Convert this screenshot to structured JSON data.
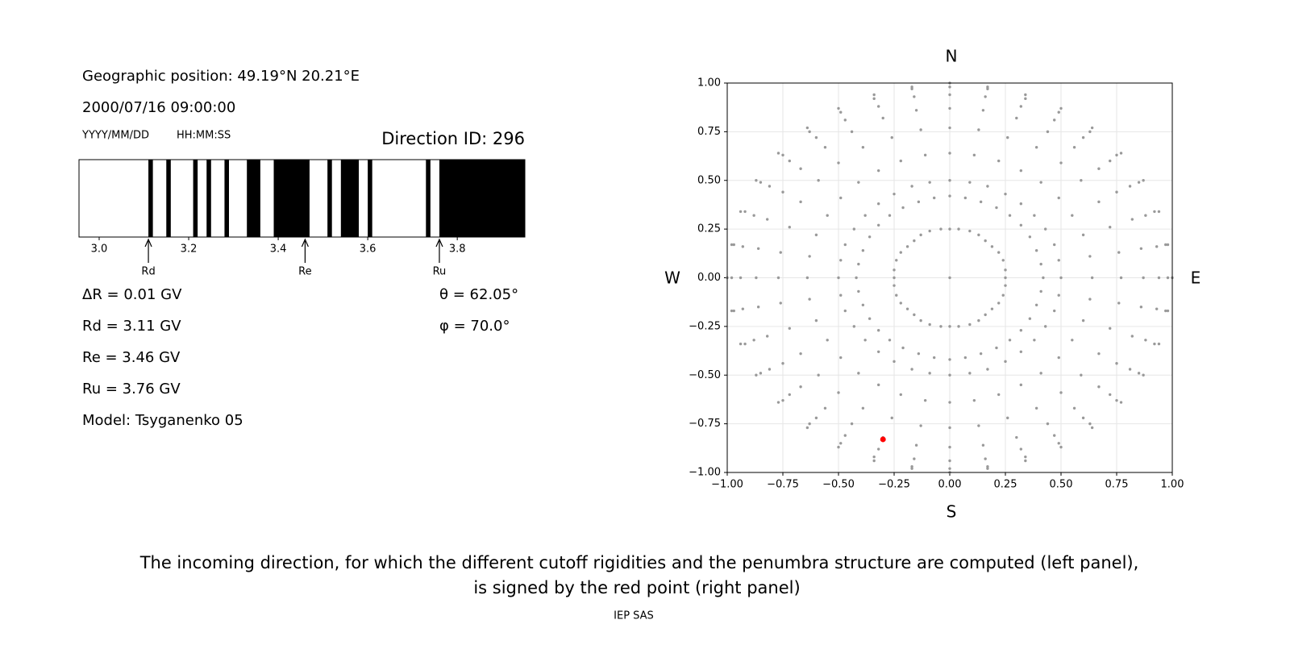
{
  "chart_data": [
    {
      "type": "penumbra",
      "title": "Direction ID: 296",
      "position": "Geographic position: 49.19°N 20.21°E",
      "datetime": "2000/07/16 09:00:00",
      "date_format": "YYYY/MM/DD",
      "time_format": "HH:MM:SS",
      "step": "ΔR = 0.01 GV",
      "model": "Model: Tsyganenko 05",
      "theta": "θ = 62.05°",
      "phi": "φ = 70.0°",
      "color": "#000000",
      "xlim": [
        2.955,
        3.951
      ],
      "xticks": [
        {
          "value": 3,
          "label": "3.0"
        },
        3.2,
        3.4,
        3.6,
        3.8
      ],
      "segments": [
        [
          3.11,
          3.12
        ],
        [
          3.15,
          3.16
        ],
        [
          3.21,
          3.22
        ],
        [
          3.24,
          3.25
        ],
        [
          3.28,
          3.29
        ],
        [
          3.33,
          3.36
        ],
        [
          3.39,
          3.47
        ],
        [
          3.51,
          3.52
        ],
        [
          3.54,
          3.58
        ],
        [
          3.6,
          3.61
        ],
        [
          3.73,
          3.74
        ],
        [
          3.76,
          3.951
        ]
      ],
      "markers": [
        {
          "name": "Rd",
          "value": 3.11,
          "label": "Rd = 3.11 GV"
        },
        {
          "name": "Re",
          "value": 3.46,
          "label": "Re = 3.46 GV"
        },
        {
          "name": "Ru",
          "value": 3.76,
          "label": "Ru = 3.76 GV"
        }
      ]
    },
    {
      "type": "scatter",
      "north": "N",
      "south": "S",
      "west": "W",
      "east": "E",
      "xlim": [
        -1,
        1
      ],
      "ylim": [
        -1,
        1
      ],
      "grid": true,
      "color": "#999999",
      "xticks": [
        {
          "value": -1,
          "label": "−1.00"
        },
        {
          "value": -0.75,
          "label": "−0.75"
        },
        {
          "value": -0.5,
          "label": "−0.50"
        },
        {
          "value": -0.25,
          "label": "−0.25"
        },
        {
          "value": 0,
          "label": "0.00"
        },
        {
          "value": 0.25,
          "label": "0.25"
        },
        {
          "value": 0.5,
          "label": "0.50"
        },
        {
          "value": 0.75,
          "label": "0.75"
        },
        {
          "value": 1,
          "label": "1.00"
        }
      ],
      "yticks": [
        {
          "value": -1,
          "label": "−1.00"
        },
        {
          "value": -0.75,
          "label": "−0.75"
        },
        {
          "value": -0.5,
          "label": "−0.50"
        },
        {
          "value": -0.25,
          "label": "−0.25"
        },
        {
          "value": 0,
          "label": "0.00"
        },
        {
          "value": 0.25,
          "label": "0.25"
        },
        {
          "value": 0.5,
          "label": "0.50"
        },
        {
          "value": 0.75,
          "label": "0.75"
        },
        {
          "value": 1,
          "label": "1.00"
        }
      ],
      "x": [
        0,
        0,
        0,
        0,
        0,
        0,
        0,
        0,
        0,
        0,
        0.04,
        0.07,
        0.09,
        0.11,
        0.13,
        0.15,
        0.16,
        0.17,
        0.17,
        0.09,
        0.14,
        0.17,
        0.22,
        0.26,
        0.3,
        0.32,
        0.34,
        0.34,
        0.13,
        0.21,
        0.25,
        0.32,
        0.39,
        0.44,
        0.47,
        0.49,
        0.5,
        0.16,
        0.27,
        0.32,
        0.41,
        0.5,
        0.56,
        0.6,
        0.63,
        0.64,
        0.19,
        0.32,
        0.38,
        0.49,
        0.59,
        0.67,
        0.72,
        0.75,
        0.77,
        0.22,
        0.36,
        0.43,
        0.55,
        0.67,
        0.75,
        0.81,
        0.85,
        0.87,
        0.24,
        0.39,
        0.47,
        0.6,
        0.72,
        0.82,
        0.88,
        0.92,
        0.94,
        0.25,
        0.41,
        0.49,
        0.63,
        0.76,
        0.86,
        0.93,
        0.97,
        0.98,
        0.25,
        0.42,
        0.5,
        0.64,
        0.77,
        0.87,
        0.94,
        0.98,
        1,
        0.25,
        0.41,
        0.49,
        0.63,
        0.76,
        0.86,
        0.93,
        0.97,
        0.98,
        0.24,
        0.39,
        0.47,
        0.6,
        0.72,
        0.82,
        0.88,
        0.92,
        0.94,
        0.22,
        0.36,
        0.43,
        0.55,
        0.67,
        0.75,
        0.81,
        0.85,
        0.87,
        0.19,
        0.32,
        0.38,
        0.49,
        0.59,
        0.67,
        0.72,
        0.75,
        0.77,
        0.16,
        0.27,
        0.32,
        0.41,
        0.5,
        0.56,
        0.6,
        0.63,
        0.64,
        0.13,
        0.21,
        0.25,
        0.32,
        0.39,
        0.44,
        0.47,
        0.49,
        0.5,
        0.09,
        0.14,
        0.17,
        0.22,
        0.26,
        0.3,
        0.32,
        0.34,
        0.34,
        0.04,
        0.07,
        0.09,
        0.11,
        0.13,
        0.15,
        0.16,
        0.17,
        0.17,
        0,
        0,
        0,
        0,
        0,
        0,
        0,
        0,
        0,
        -0.04,
        -0.07,
        -0.09,
        -0.11,
        -0.13,
        -0.15,
        -0.16,
        -0.17,
        -0.17,
        -0.09,
        -0.14,
        -0.17,
        -0.22,
        -0.26,
        -0.3,
        -0.32,
        -0.34,
        -0.34,
        -0.13,
        -0.21,
        -0.25,
        -0.32,
        -0.39,
        -0.44,
        -0.47,
        -0.49,
        -0.5,
        -0.16,
        -0.27,
        -0.32,
        -0.41,
        -0.5,
        -0.56,
        -0.6,
        -0.63,
        -0.64,
        -0.19,
        -0.32,
        -0.38,
        -0.49,
        -0.59,
        -0.67,
        -0.72,
        -0.75,
        -0.77,
        -0.22,
        -0.36,
        -0.43,
        -0.55,
        -0.67,
        -0.75,
        -0.81,
        -0.85,
        -0.87,
        -0.24,
        -0.39,
        -0.47,
        -0.6,
        -0.72,
        -0.82,
        -0.88,
        -0.92,
        -0.94,
        -0.25,
        -0.41,
        -0.49,
        -0.63,
        -0.76,
        -0.86,
        -0.93,
        -0.97,
        -0.98,
        -0.25,
        -0.42,
        -0.5,
        -0.64,
        -0.77,
        -0.87,
        -0.94,
        -0.98,
        -1,
        -0.25,
        -0.41,
        -0.49,
        -0.63,
        -0.76,
        -0.86,
        -0.93,
        -0.97,
        -0.98,
        -0.24,
        -0.39,
        -0.47,
        -0.6,
        -0.72,
        -0.82,
        -0.88,
        -0.92,
        -0.94,
        -0.22,
        -0.36,
        -0.43,
        -0.55,
        -0.67,
        -0.75,
        -0.81,
        -0.85,
        -0.87,
        -0.19,
        -0.32,
        -0.38,
        -0.49,
        -0.59,
        -0.67,
        -0.72,
        -0.75,
        -0.77,
        -0.16,
        -0.27,
        -0.32,
        -0.41,
        -0.5,
        -0.56,
        -0.6,
        -0.63,
        -0.64,
        -0.13,
        -0.21,
        -0.25,
        -0.32,
        -0.39,
        -0.44,
        -0.47,
        -0.49,
        -0.5,
        -0.09,
        -0.14,
        -0.17,
        -0.22,
        -0.26,
        -0.3,
        -0.32,
        -0.34,
        -0.34,
        -0.04,
        -0.07,
        -0.09,
        -0.11,
        -0.13,
        -0.15,
        -0.16,
        -0.17,
        -0.17
      ],
      "y": [
        0,
        0.25,
        0.42,
        0.5,
        0.64,
        0.77,
        0.87,
        0.94,
        0.98,
        1,
        0.25,
        0.41,
        0.49,
        0.63,
        0.76,
        0.86,
        0.93,
        0.97,
        0.98,
        0.24,
        0.39,
        0.47,
        0.6,
        0.72,
        0.82,
        0.88,
        0.92,
        0.94,
        0.22,
        0.36,
        0.43,
        0.55,
        0.67,
        0.75,
        0.81,
        0.85,
        0.87,
        0.19,
        0.32,
        0.38,
        0.49,
        0.59,
        0.67,
        0.72,
        0.75,
        0.77,
        0.16,
        0.27,
        0.32,
        0.41,
        0.5,
        0.56,
        0.6,
        0.63,
        0.64,
        0.13,
        0.21,
        0.25,
        0.32,
        0.39,
        0.44,
        0.47,
        0.49,
        0.5,
        0.09,
        0.14,
        0.17,
        0.22,
        0.26,
        0.3,
        0.32,
        0.34,
        0.34,
        0.04,
        0.07,
        0.09,
        0.11,
        0.13,
        0.15,
        0.16,
        0.17,
        0.17,
        0,
        0,
        0,
        0,
        0,
        0,
        0,
        0,
        0,
        -0.04,
        -0.07,
        -0.09,
        -0.11,
        -0.13,
        -0.15,
        -0.16,
        -0.17,
        -0.17,
        -0.09,
        -0.14,
        -0.17,
        -0.22,
        -0.26,
        -0.3,
        -0.32,
        -0.34,
        -0.34,
        -0.13,
        -0.21,
        -0.25,
        -0.32,
        -0.39,
        -0.44,
        -0.47,
        -0.49,
        -0.5,
        -0.16,
        -0.27,
        -0.32,
        -0.41,
        -0.5,
        -0.56,
        -0.6,
        -0.63,
        -0.64,
        -0.19,
        -0.32,
        -0.38,
        -0.49,
        -0.59,
        -0.67,
        -0.72,
        -0.75,
        -0.77,
        -0.22,
        -0.36,
        -0.43,
        -0.55,
        -0.67,
        -0.75,
        -0.81,
        -0.85,
        -0.87,
        -0.24,
        -0.39,
        -0.47,
        -0.6,
        -0.72,
        -0.82,
        -0.88,
        -0.92,
        -0.94,
        -0.25,
        -0.41,
        -0.49,
        -0.63,
        -0.76,
        -0.86,
        -0.93,
        -0.97,
        -0.98,
        -0.25,
        -0.42,
        -0.5,
        -0.64,
        -0.77,
        -0.87,
        -0.94,
        -0.98,
        -1,
        -0.25,
        -0.41,
        -0.49,
        -0.63,
        -0.76,
        -0.86,
        -0.93,
        -0.97,
        -0.98,
        -0.24,
        -0.39,
        -0.47,
        -0.6,
        -0.72,
        -0.82,
        -0.88,
        -0.92,
        -0.94,
        -0.22,
        -0.36,
        -0.43,
        -0.55,
        -0.67,
        -0.75,
        -0.81,
        -0.85,
        -0.87,
        -0.19,
        -0.32,
        -0.38,
        -0.49,
        -0.59,
        -0.67,
        -0.72,
        -0.75,
        -0.77,
        -0.16,
        -0.27,
        -0.32,
        -0.41,
        -0.5,
        -0.56,
        -0.6,
        -0.63,
        -0.64,
        -0.13,
        -0.21,
        -0.25,
        -0.32,
        -0.39,
        -0.44,
        -0.47,
        -0.49,
        -0.5,
        -0.09,
        -0.14,
        -0.17,
        -0.22,
        -0.26,
        -0.3,
        -0.32,
        -0.34,
        -0.34,
        -0.04,
        -0.07,
        -0.09,
        -0.11,
        -0.13,
        -0.15,
        -0.16,
        -0.17,
        -0.17,
        0,
        0,
        0,
        0,
        0,
        0,
        0,
        0,
        0,
        0.04,
        0.07,
        0.09,
        0.11,
        0.13,
        0.15,
        0.16,
        0.17,
        0.17,
        0.09,
        0.14,
        0.17,
        0.22,
        0.26,
        0.3,
        0.32,
        0.34,
        0.34,
        0.13,
        0.21,
        0.25,
        0.32,
        0.39,
        0.44,
        0.47,
        0.49,
        0.5,
        0.16,
        0.27,
        0.32,
        0.41,
        0.5,
        0.56,
        0.6,
        0.63,
        0.64,
        0.19,
        0.32,
        0.38,
        0.49,
        0.59,
        0.67,
        0.72,
        0.75,
        0.77,
        0.22,
        0.36,
        0.43,
        0.55,
        0.67,
        0.75,
        0.81,
        0.85,
        0.87,
        0.24,
        0.39,
        0.47,
        0.6,
        0.72,
        0.82,
        0.88,
        0.92,
        0.94,
        0.25,
        0.41,
        0.49,
        0.63,
        0.76,
        0.86,
        0.93,
        0.97,
        0.98
      ],
      "highlight": {
        "x": -0.3,
        "y": -0.83,
        "color": "#ff0000"
      }
    }
  ],
  "caption": [
    "The incoming direction, for which the different cutoff rigidities and the penumbra structure are computed (left panel),",
    "is signed by the red point (right panel)"
  ],
  "footer": "IEP SAS"
}
